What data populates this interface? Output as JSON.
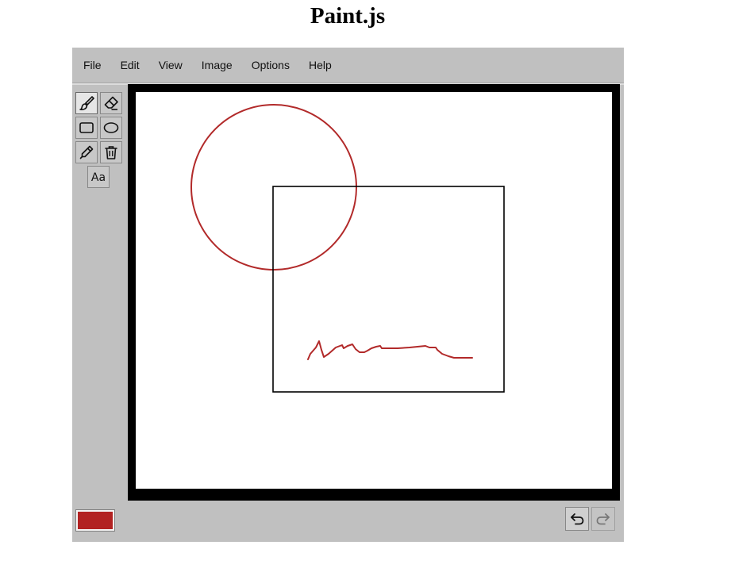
{
  "page": {
    "title": "Paint.js"
  },
  "menu": {
    "items": [
      "File",
      "Edit",
      "View",
      "Image",
      "Options",
      "Help"
    ]
  },
  "tools": [
    {
      "name": "brush",
      "icon": "brush-icon",
      "active": true
    },
    {
      "name": "eraser",
      "icon": "eraser-icon",
      "active": false
    },
    {
      "name": "rectangle",
      "icon": "rectangle-icon",
      "active": false
    },
    {
      "name": "ellipse",
      "icon": "ellipse-icon",
      "active": false
    },
    {
      "name": "color-picker",
      "icon": "eyedropper-icon",
      "active": false
    },
    {
      "name": "clear",
      "icon": "trash-icon",
      "active": false
    },
    {
      "name": "text",
      "icon": "text-icon",
      "active": false
    }
  ],
  "text_tool": {
    "glyph": "Aa"
  },
  "colors": {
    "current": "#b22222",
    "stroke_red": "#b22a2a",
    "stroke_black": "#000000"
  },
  "history": {
    "undo_enabled": true,
    "redo_enabled": false
  }
}
